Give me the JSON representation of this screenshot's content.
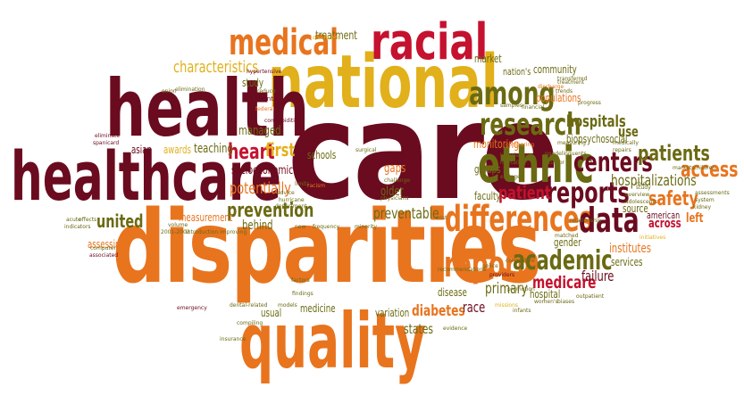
{
  "palette": {
    "dark_red": "#6b0b1f",
    "red": "#c4122f",
    "orange": "#e8741e",
    "gold": "#e1b01a",
    "olive": "#6b6a13",
    "green": "#4d5a12"
  },
  "words": {
    "care": "care",
    "disparities": "disparities",
    "national": "national",
    "health": "health",
    "healthcare": "healthcare",
    "quality": "quality",
    "racial": "racial",
    "medical": "medical",
    "ethnic": "ethnic",
    "research": "research",
    "among": "among",
    "differences": "differences",
    "report": "report",
    "academic": "academic",
    "reports": "reports",
    "centers": "centers",
    "data": "data",
    "patients": "patients",
    "access": "access",
    "hospitalizations": "hospitalizations",
    "safety": "safety",
    "heart": "heart",
    "prevention": "prevention",
    "characteristics": "characteristics",
    "potentially": "potentially",
    "preventable": "preventable",
    "patient": "patient",
    "hospitals": "hospitals",
    "medicare": "medicare",
    "united": "united",
    "primary": "primary",
    "treatment": "treatment",
    "first": "first",
    "socioeconomic": "socioeconomic",
    "behind": "behind",
    "diabetes": "diabetes",
    "states": "states",
    "failure": "failure",
    "race": "race",
    "institutes": "institutes",
    "across": "across",
    "gaps": "gaps",
    "older": "older",
    "teaching": "teaching",
    "awards": "awards",
    "asian": "asian",
    "managed": "managed",
    "use": "use",
    "monitoring": "monitoring",
    "schools": "schools",
    "community": "community",
    "market": "market",
    "study": "study",
    "measurement": "measurement",
    "assessing": "assessing",
    "groups": "groups",
    "faculty": "faculty",
    "gender": "gender",
    "source": "source",
    "american": "american",
    "services": "services",
    "hospital": "hospital",
    "disease": "disease",
    "variation": "variation",
    "medicine": "medicine",
    "usual": "usual",
    "left": "left",
    "biopsychosocial": "biopsychosocial",
    "populations": "populations",
    "nations": "nation's",
    "events": "events",
    "hypertensive": "hypertensive",
    "conditions": "conditions",
    "elimination": "elimination",
    "reduce": "reduce",
    "federal": "federal",
    "comorbidities": "comorbidities",
    "limits": "limits",
    "advice": "advice",
    "hurricane": "hurricane",
    "surgical": "surgical",
    "minority": "minority",
    "eliminate": "eliminate",
    "spanicard": "spanicard",
    "onion": "onion",
    "acute": "acute",
    "effects": "effects",
    "indicators": "indicators",
    "associated": "associated",
    "volume": "volume",
    "introduction": "introduction improving",
    "emergency": "emergency",
    "insurance": "insurance",
    "compiling": "compiling",
    "factors": "factors",
    "findings": "findings",
    "frequency": "frequency",
    "models": "models",
    "dental": "dental-related",
    "recommendations": "recommendations",
    "providers": "providers",
    "women": "women's",
    "biases": "biases",
    "evidence": "evidence",
    "matched": "matched",
    "relationship": "relationship",
    "outpatient": "outpatient",
    "children": "children",
    "medically": "medically",
    "markets": "markets",
    "assessments": "assessments",
    "system": "system",
    "kidney": "kidney",
    "overview": "overview",
    "adolescents": "adolescents",
    "initiatives": "initiatives",
    "treatment2": "treatment",
    "progress": "progress",
    "trends": "trends",
    "samples": "samples",
    "financial": "financial",
    "discharge": "discharge",
    "measuring": "measuring",
    "knowledge": "knowledge",
    "mortality": "mortality",
    "estrogen": "estrogen",
    "tumor": "tumor",
    "nondelinquents": "nondelinquents",
    "congestive": "congestive",
    "challenge": "challenge",
    "physicians": "physicians",
    "department": "department",
    "year": "2001-2002",
    "promotion": "promotion",
    "missions": "missions",
    "infants": "infants",
    "role": "role",
    "study2": "study",
    "police": "police",
    "comparing": "comparing",
    "repairs": "repairs",
    "transferred": "transferred",
    "disparity": "disparity",
    "new": "new",
    "cost": "cost",
    "outcomes": "outcomes",
    "computer": "computer",
    "health2": "health",
    "racism": "racism"
  }
}
